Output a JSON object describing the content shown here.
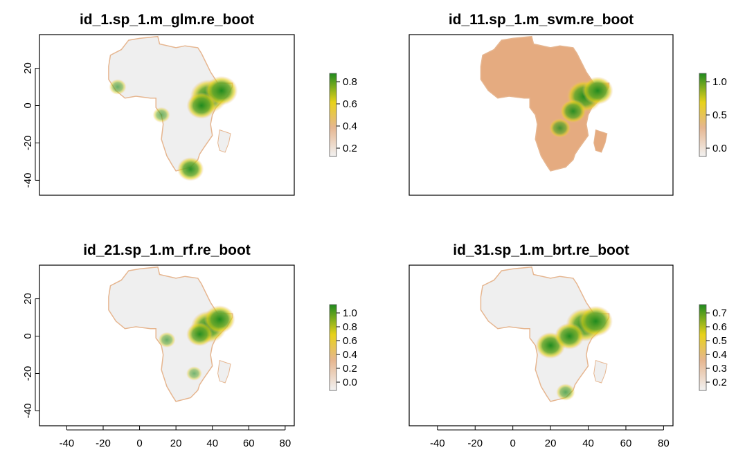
{
  "panels": [
    {
      "id": "glm",
      "title": "id_1.sp_1.m_glm.re_boot",
      "y_ticks": [
        "20",
        "0",
        "-20",
        "-40"
      ],
      "x_ticks": [],
      "legend_ticks": [
        "0.8",
        "0.6",
        "0.4",
        "0.2"
      ],
      "hotspots": [
        {
          "lon": 38,
          "lat": 5,
          "level": 0.95
        },
        {
          "lon": 45,
          "lat": 8,
          "level": 0.8
        },
        {
          "lon": 34,
          "lat": 0,
          "level": 0.7
        },
        {
          "lon": 28,
          "lat": -34,
          "level": 0.6
        },
        {
          "lon": -12,
          "lat": 10,
          "level": 0.3
        },
        {
          "lon": 12,
          "lat": -5,
          "level": 0.3
        }
      ]
    },
    {
      "id": "svm",
      "title": "id_11.sp_1.m_svm.re_boot",
      "y_ticks": [],
      "x_ticks": [],
      "legend_ticks": [
        "1.0",
        "0.5",
        "0.0"
      ],
      "hotspots": [
        {
          "lon": 38,
          "lat": 5,
          "level": 0.9
        },
        {
          "lon": 45,
          "lat": 8,
          "level": 0.75
        },
        {
          "lon": 32,
          "lat": -3,
          "level": 0.6
        },
        {
          "lon": 25,
          "lat": -12,
          "level": 0.45
        }
      ]
    },
    {
      "id": "rf",
      "title": "id_21.sp_1.m_rf.re_boot",
      "y_ticks": [
        "20",
        "0",
        "-20",
        "-40"
      ],
      "x_ticks": [
        "-40",
        "-20",
        "0",
        "20",
        "40",
        "60",
        "80"
      ],
      "legend_ticks": [
        "1.0",
        "0.8",
        "0.6",
        "0.4",
        "0.2",
        "0.0"
      ],
      "hotspots": [
        {
          "lon": 38,
          "lat": 5,
          "level": 0.9
        },
        {
          "lon": 44,
          "lat": 9,
          "level": 0.75
        },
        {
          "lon": 33,
          "lat": 1,
          "level": 0.6
        },
        {
          "lon": 15,
          "lat": -2,
          "level": 0.3
        },
        {
          "lon": 30,
          "lat": -20,
          "level": 0.25
        }
      ]
    },
    {
      "id": "brt",
      "title": "id_31.sp_1.m_brt.re_boot",
      "y_ticks": [],
      "x_ticks": [
        "-40",
        "-20",
        "0",
        "20",
        "40",
        "60",
        "80"
      ],
      "legend_ticks": [
        "0.7",
        "0.6",
        "0.5",
        "0.4",
        "0.3",
        "0.2"
      ],
      "hotspots": [
        {
          "lon": 38,
          "lat": 6,
          "level": 0.95
        },
        {
          "lon": 44,
          "lat": 8,
          "level": 0.85
        },
        {
          "lon": 20,
          "lat": -5,
          "level": 0.7
        },
        {
          "lon": 30,
          "lat": 0,
          "level": 0.7
        },
        {
          "lon": 28,
          "lat": -30,
          "level": 0.35
        }
      ]
    }
  ],
  "colors": {
    "land_low": "#efefef",
    "land_svm": "#e5ab80",
    "ramp_low": "#f2f2f2",
    "ramp_mid1": "#e6b690",
    "ramp_mid2": "#e8d21a",
    "ramp_high": "#1f8a1f"
  },
  "map_extent": {
    "lon": [
      -55,
      85
    ],
    "lat": [
      -48,
      38
    ]
  }
}
